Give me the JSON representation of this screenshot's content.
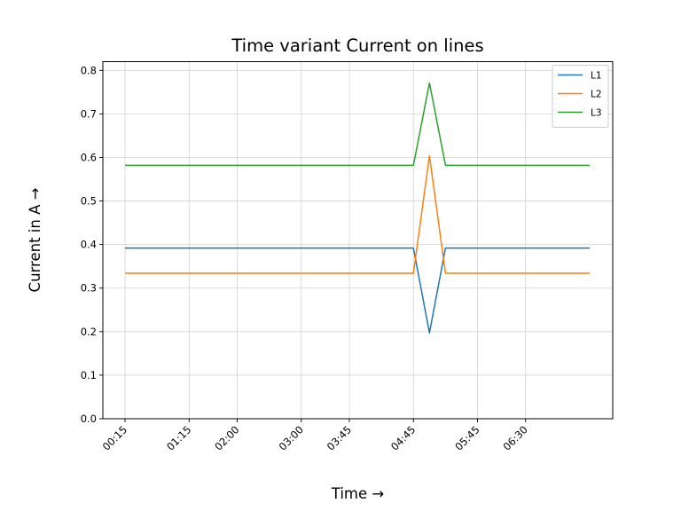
{
  "chart_data": {
    "type": "line",
    "title": "Time variant Current on lines",
    "xlabel": "Time →",
    "ylabel": "Current in A →",
    "x": [
      "00:15",
      "00:30",
      "00:45",
      "01:00",
      "01:15",
      "01:30",
      "01:45",
      "02:00",
      "02:15",
      "02:30",
      "02:45",
      "03:00",
      "03:15",
      "03:30",
      "03:45",
      "04:00",
      "04:15",
      "04:30",
      "04:45",
      "05:00",
      "05:15",
      "05:30",
      "05:45",
      "06:00",
      "06:15",
      "06:30",
      "06:45",
      "07:00",
      "07:15",
      "07:30"
    ],
    "x_tick_labels": [
      "00:15",
      "01:15",
      "02:00",
      "03:00",
      "03:45",
      "04:45",
      "05:45",
      "06:30"
    ],
    "ylim": [
      0,
      0.82
    ],
    "y_ticks": [
      "0.0",
      "0.1",
      "0.2",
      "0.3",
      "0.4",
      "0.5",
      "0.6",
      "0.7",
      "0.8"
    ],
    "grid": true,
    "legend_position": "top-right",
    "series": [
      {
        "name": "L1",
        "color": "#1f77b4",
        "values": [
          0.392,
          0.392,
          0.392,
          0.392,
          0.392,
          0.392,
          0.392,
          0.392,
          0.392,
          0.392,
          0.392,
          0.392,
          0.392,
          0.392,
          0.392,
          0.392,
          0.392,
          0.392,
          0.392,
          0.197,
          0.392,
          0.392,
          0.392,
          0.392,
          0.392,
          0.392,
          0.392,
          0.392,
          0.392,
          0.392
        ]
      },
      {
        "name": "L2",
        "color": "#ff7f0e",
        "values": [
          0.334,
          0.334,
          0.334,
          0.334,
          0.334,
          0.334,
          0.334,
          0.334,
          0.334,
          0.334,
          0.334,
          0.334,
          0.334,
          0.334,
          0.334,
          0.334,
          0.334,
          0.334,
          0.334,
          0.604,
          0.334,
          0.334,
          0.334,
          0.334,
          0.334,
          0.334,
          0.334,
          0.334,
          0.334,
          0.334
        ]
      },
      {
        "name": "L3",
        "color": "#2ca02c",
        "values": [
          0.582,
          0.582,
          0.582,
          0.582,
          0.582,
          0.582,
          0.582,
          0.582,
          0.582,
          0.582,
          0.582,
          0.582,
          0.582,
          0.582,
          0.582,
          0.582,
          0.582,
          0.582,
          0.582,
          0.771,
          0.582,
          0.582,
          0.582,
          0.582,
          0.582,
          0.582,
          0.582,
          0.582,
          0.582,
          0.582
        ]
      }
    ]
  }
}
